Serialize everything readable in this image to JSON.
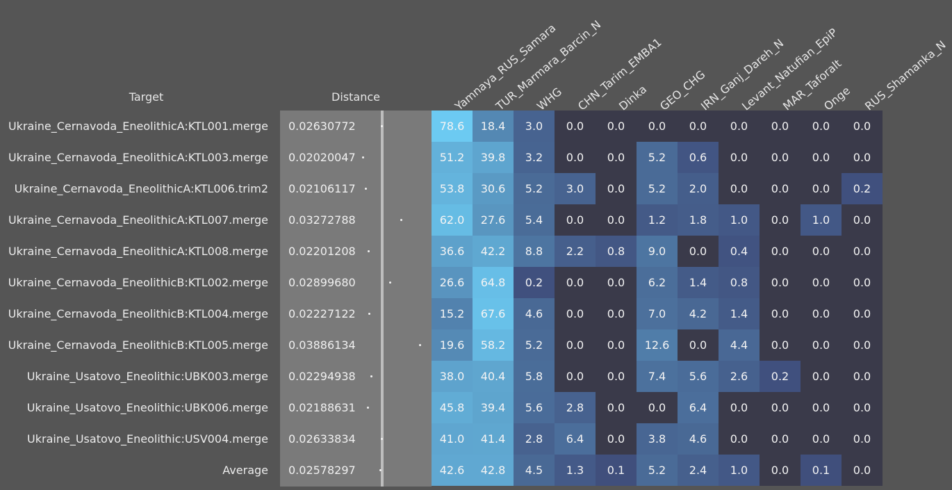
{
  "headers": {
    "target": "Target",
    "distance": "Distance"
  },
  "chart_data": {
    "type": "heatmap",
    "columns": [
      "Yamnaya_RUS_Samara",
      "TUR_Marmara_Barcin_N",
      "WHG",
      "CHN_Tarim_EMBA1",
      "Dinka",
      "GEO_CHG",
      "IRN_Ganj_Dareh_N",
      "Levant_Natufian_EpiP",
      "MAR_Taforalt",
      "Onge",
      "RUS_Shamanka_N"
    ],
    "rows": [
      {
        "target": "Ukraine_Cernavoda_EneolithicA:KTL001.merge",
        "distance": "0.02630772",
        "values": [
          "78.6",
          "18.4",
          "3.0",
          "0.0",
          "0.0",
          "0.0",
          "0.0",
          "0.0",
          "0.0",
          "0.0",
          "0.0"
        ]
      },
      {
        "target": "Ukraine_Cernavoda_EneolithicA:KTL003.merge",
        "distance": "0.02020047",
        "values": [
          "51.2",
          "39.8",
          "3.2",
          "0.0",
          "0.0",
          "5.2",
          "0.6",
          "0.0",
          "0.0",
          "0.0",
          "0.0"
        ]
      },
      {
        "target": "Ukraine_Cernavoda_EneolithicA:KTL006.trim2",
        "distance": "0.02106117",
        "values": [
          "53.8",
          "30.6",
          "5.2",
          "3.0",
          "0.0",
          "5.2",
          "2.0",
          "0.0",
          "0.0",
          "0.0",
          "0.2"
        ]
      },
      {
        "target": "Ukraine_Cernavoda_EneolithicA:KTL007.merge",
        "distance": "0.03272788",
        "values": [
          "62.0",
          "27.6",
          "5.4",
          "0.0",
          "0.0",
          "1.2",
          "1.8",
          "1.0",
          "0.0",
          "1.0",
          "0.0"
        ]
      },
      {
        "target": "Ukraine_Cernavoda_EneolithicA:KTL008.merge",
        "distance": "0.02201208",
        "values": [
          "36.6",
          "42.2",
          "8.8",
          "2.2",
          "0.8",
          "9.0",
          "0.0",
          "0.4",
          "0.0",
          "0.0",
          "0.0"
        ]
      },
      {
        "target": "Ukraine_Cernavoda_EneolithicB:KTL002.merge",
        "distance": "0.02899680",
        "values": [
          "26.6",
          "64.8",
          "0.2",
          "0.0",
          "0.0",
          "6.2",
          "1.4",
          "0.8",
          "0.0",
          "0.0",
          "0.0"
        ]
      },
      {
        "target": "Ukraine_Cernavoda_EneolithicB:KTL004.merge",
        "distance": "0.02227122",
        "values": [
          "15.2",
          "67.6",
          "4.6",
          "0.0",
          "0.0",
          "7.0",
          "4.2",
          "1.4",
          "0.0",
          "0.0",
          "0.0"
        ]
      },
      {
        "target": "Ukraine_Cernavoda_EneolithicB:KTL005.merge",
        "distance": "0.03886134",
        "values": [
          "19.6",
          "58.2",
          "5.2",
          "0.0",
          "0.0",
          "12.6",
          "0.0",
          "4.4",
          "0.0",
          "0.0",
          "0.0"
        ]
      },
      {
        "target": "Ukraine_Usatovo_Eneolithic:UBK003.merge",
        "distance": "0.02294938",
        "values": [
          "38.0",
          "40.4",
          "5.8",
          "0.0",
          "0.0",
          "7.4",
          "5.6",
          "2.6",
          "0.2",
          "0.0",
          "0.0"
        ]
      },
      {
        "target": "Ukraine_Usatovo_Eneolithic:UBK006.merge",
        "distance": "0.02188631",
        "values": [
          "45.8",
          "39.4",
          "5.6",
          "2.8",
          "0.0",
          "0.0",
          "6.4",
          "0.0",
          "0.0",
          "0.0",
          "0.0"
        ]
      },
      {
        "target": "Ukraine_Usatovo_Eneolithic:USV004.merge",
        "distance": "0.02633834",
        "values": [
          "41.0",
          "41.4",
          "2.8",
          "6.4",
          "0.0",
          "3.8",
          "4.6",
          "0.0",
          "0.0",
          "0.0",
          "0.0"
        ]
      },
      {
        "target": "Average",
        "distance": "0.02578297",
        "values": [
          "42.6",
          "42.8",
          "4.5",
          "1.3",
          "0.1",
          "5.2",
          "2.4",
          "1.0",
          "0.0",
          "0.1",
          "0.0"
        ]
      }
    ],
    "colors": {
      "zero": "#3a3a4a",
      "low": "#3e4a78",
      "high": "#6ccbf3",
      "background": "#555555",
      "distance_panel": "#7a7a7a"
    }
  }
}
